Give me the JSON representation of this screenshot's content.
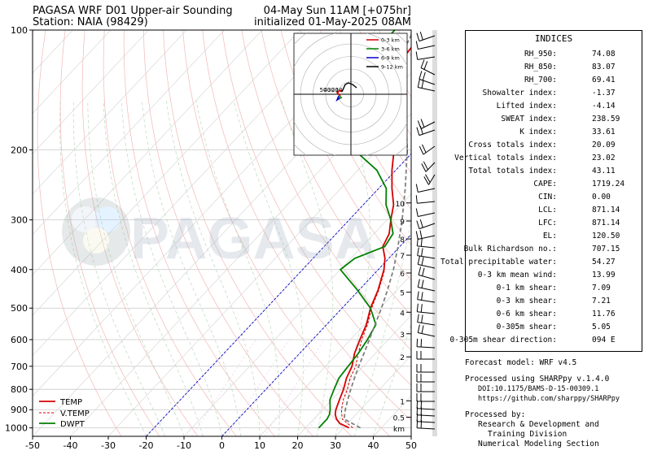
{
  "header": {
    "title_left_line1": "PAGASA WRF D01 Upper-air Sounding",
    "title_left_line2": "Station: NAIA (98429)",
    "title_right_line1": "04-May Sun 11AM [+075hr]",
    "title_right_line2": "initialized 01-May-2025 08AM"
  },
  "watermark": "PAGASA",
  "chart_data": {
    "type": "line",
    "subtype": "skew-T log-P sounding",
    "x_axis": {
      "label": "",
      "range": [
        -50,
        50
      ],
      "ticks": [
        "-50",
        "-40",
        "-30",
        "-20",
        "-10",
        "0",
        "10",
        "20",
        "30",
        "40",
        "50"
      ]
    },
    "y_axis": {
      "label": "",
      "scale": "log",
      "range": [
        1050,
        100
      ],
      "ticks": [
        "100",
        "200",
        "300",
        "400",
        "500",
        "600",
        "700",
        "800",
        "900",
        "1000"
      ]
    },
    "height_axis": {
      "ticks": [
        "10",
        "9",
        "8",
        "7",
        "6",
        "5",
        "4",
        "3",
        "2",
        "1",
        "0.5"
      ],
      "unit": "km"
    },
    "series": [
      {
        "name": "TEMP",
        "color": "#d40000",
        "style": "solid",
        "points": [
          [
            1000,
            31.5
          ],
          [
            975,
            28
          ],
          [
            950,
            26
          ],
          [
            925,
            24.5
          ],
          [
            900,
            23.5
          ],
          [
            850,
            22
          ],
          [
            800,
            20.5
          ],
          [
            750,
            18.5
          ],
          [
            700,
            17
          ],
          [
            650,
            14.5
          ],
          [
            600,
            12.5
          ],
          [
            550,
            10.5
          ],
          [
            500,
            7.5
          ],
          [
            450,
            5
          ],
          [
            400,
            1.5
          ],
          [
            375,
            -1
          ],
          [
            350,
            -4.5
          ],
          [
            325,
            -6
          ],
          [
            300,
            -9
          ],
          [
            275,
            -12
          ],
          [
            250,
            -16.5
          ],
          [
            225,
            -21
          ],
          [
            200,
            -25.5
          ],
          [
            175,
            -31
          ],
          [
            150,
            -38
          ],
          [
            130,
            -43
          ],
          [
            115,
            -46
          ],
          [
            100,
            -47
          ]
        ]
      },
      {
        "name": "V.TEMP",
        "color": "#d40000",
        "style": "dashed",
        "points": [
          [
            1000,
            32.5
          ],
          [
            950,
            27.5
          ],
          [
            900,
            25
          ],
          [
            850,
            23
          ],
          [
            800,
            21.5
          ],
          [
            750,
            19.5
          ],
          [
            700,
            18
          ],
          [
            650,
            15.5
          ],
          [
            600,
            13
          ],
          [
            550,
            10.8
          ],
          [
            500,
            7.8
          ],
          [
            450,
            5.2
          ],
          [
            400,
            1.7
          ]
        ]
      },
      {
        "name": "DWPT",
        "color": "#008000",
        "style": "solid",
        "points": [
          [
            1000,
            23.5
          ],
          [
            950,
            23.5
          ],
          [
            925,
            23
          ],
          [
            900,
            22
          ],
          [
            850,
            19.5
          ],
          [
            800,
            18
          ],
          [
            750,
            16.5
          ],
          [
            700,
            16
          ],
          [
            650,
            15.5
          ],
          [
            600,
            14.5
          ],
          [
            550,
            13
          ],
          [
            500,
            7.5
          ],
          [
            450,
            -0.5
          ],
          [
            400,
            -10
          ],
          [
            375,
            -9
          ],
          [
            350,
            -4
          ],
          [
            325,
            -5
          ],
          [
            300,
            -9
          ],
          [
            275,
            -14
          ],
          [
            250,
            -18
          ],
          [
            225,
            -25
          ],
          [
            200,
            -36
          ],
          [
            175,
            -43
          ],
          [
            150,
            -50
          ],
          [
            130,
            -55
          ],
          [
            120,
            -54
          ],
          [
            110,
            -55
          ],
          [
            100,
            -55
          ]
        ]
      },
      {
        "name": "Parcel",
        "color": "#808080",
        "style": "dashed",
        "points": [
          [
            1000,
            34.5
          ],
          [
            950,
            28
          ],
          [
            900,
            26
          ],
          [
            850,
            24.2
          ],
          [
            800,
            22.4
          ],
          [
            750,
            20.6
          ],
          [
            700,
            18.8
          ],
          [
            650,
            17
          ],
          [
            600,
            15
          ],
          [
            550,
            12.8
          ],
          [
            500,
            10.4
          ],
          [
            450,
            7.5
          ],
          [
            400,
            4
          ],
          [
            350,
            -0.5
          ],
          [
            300,
            -6
          ],
          [
            250,
            -13
          ],
          [
            200,
            -22
          ],
          [
            175,
            -28
          ],
          [
            150,
            -35
          ],
          [
            125,
            -43
          ],
          [
            110,
            -48
          ],
          [
            100,
            -50
          ]
        ]
      }
    ],
    "legend": {
      "position": "bottom-left",
      "entries": [
        "TEMP",
        "V.TEMP",
        "DWPT"
      ]
    }
  },
  "hodograph": {
    "legend": [
      "0-3 km",
      "3-6 km",
      "6-9 km",
      "9-12 km"
    ],
    "legend_colors": [
      "#d40000",
      "#008000",
      "#0000cc",
      "#000000"
    ],
    "ring_labels": [
      "50",
      "40",
      "30",
      "20",
      "10"
    ]
  },
  "indices_panel": {
    "title": "INDICES",
    "rows": [
      {
        "label": "RH_950:",
        "value": "74.08"
      },
      {
        "label": "RH_850:",
        "value": "83.07"
      },
      {
        "label": "RH_700:",
        "value": "69.41"
      },
      {
        "label": "Showalter index:",
        "value": "-1.37"
      },
      {
        "label": "Lifted index:",
        "value": "-4.14"
      },
      {
        "label": "SWEAT index:",
        "value": "238.59"
      },
      {
        "label": "K index:",
        "value": "33.61"
      },
      {
        "label": "Cross totals index:",
        "value": "20.09"
      },
      {
        "label": "Vertical totals index:",
        "value": "23.02"
      },
      {
        "label": "Total totals index:",
        "value": "43.11"
      },
      {
        "label": "CAPE:",
        "value": "1719.24"
      },
      {
        "label": "CIN:",
        "value": "0.00"
      },
      {
        "label": "LCL:",
        "value": "871.14"
      },
      {
        "label": "LFC:",
        "value": "871.14"
      },
      {
        "label": "EL:",
        "value": "120.50"
      },
      {
        "label": "Bulk Richardson no.:",
        "value": "707.15"
      },
      {
        "label": "Total precipitable water:",
        "value": "54.27"
      },
      {
        "label": "0-3 km mean wind:",
        "value": "13.99"
      },
      {
        "label": "0-1 km shear:",
        "value": "7.09"
      },
      {
        "label": "0-3 km shear:",
        "value": "7.21"
      },
      {
        "label": "0-6 km shear:",
        "value": "11.76"
      },
      {
        "label": "0-305m shear:",
        "value": "5.05"
      },
      {
        "label": "0-305m shear direction:",
        "value": "094 E"
      }
    ]
  },
  "footer": {
    "forecast_model": "Forecast model: WRF v4.5",
    "processed_using": "Processed using SHARPpy v.1.4.0",
    "doi": "DOI:10.1175/BAMS-D-15-00309.1",
    "url": "https://github.com/sharppy/SHARPpy",
    "processed_by": "Processed by:",
    "org1": "Research & Development and",
    "org2": "Training Division",
    "org3": "Numerical Modeling Section"
  }
}
